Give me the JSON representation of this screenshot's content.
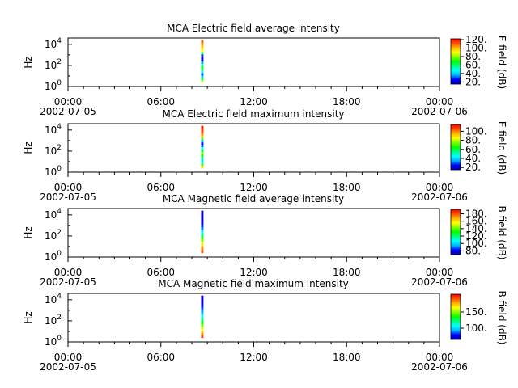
{
  "figure": {
    "colorscale": [
      "#0000b4",
      "#0000ff",
      "#00b4ff",
      "#00ffff",
      "#00ff80",
      "#00ff00",
      "#80ff00",
      "#ffff00",
      "#ffb400",
      "#ff5000",
      "#ff0000"
    ]
  },
  "chart_data": [
    {
      "type": "heatmap",
      "title": "MCA  Electric field average intensity",
      "ylabel": "Hz",
      "ylim_log10": [
        0,
        4.6
      ],
      "y_ticks": [
        {
          "exp": 0,
          "label": "10",
          "sup": "0"
        },
        {
          "exp": 2,
          "label": "10",
          "sup": "2"
        },
        {
          "exp": 4,
          "label": "10",
          "sup": "4"
        }
      ],
      "x_range_hours": [
        0,
        24
      ],
      "x_ticks": [
        {
          "hour": 0,
          "label": "00:00"
        },
        {
          "hour": 6,
          "label": "06:00"
        },
        {
          "hour": 12,
          "label": "12:00"
        },
        {
          "hour": 18,
          "label": "18:00"
        },
        {
          "hour": 24,
          "label": "00:00"
        }
      ],
      "x_dates": [
        {
          "hour": 0,
          "label": "2002-07-05"
        },
        {
          "hour": 24,
          "label": "2002-07-06"
        }
      ],
      "colorbar": {
        "label": "E field (dB)",
        "range": [
          15,
          122
        ],
        "ticks": [
          20,
          40,
          60,
          80,
          100,
          120
        ],
        "tick_labels": [
          "20.",
          "40.",
          "60.",
          "80.",
          "100.",
          "120."
        ]
      },
      "data": {
        "x_hours": [
          8.6,
          8.75
        ],
        "freq_log10": [
          0.4,
          4.4
        ],
        "levels": [
          85,
          60,
          40,
          30,
          45,
          55,
          70,
          50,
          35,
          20,
          15,
          28,
          60,
          90,
          95,
          100,
          105,
          110
        ]
      }
    },
    {
      "type": "heatmap",
      "title": "MCA  Electric field maximum intensity",
      "ylabel": "Hz",
      "ylim_log10": [
        0,
        4.6
      ],
      "y_ticks": [
        {
          "exp": 0,
          "label": "10",
          "sup": "0"
        },
        {
          "exp": 2,
          "label": "10",
          "sup": "2"
        },
        {
          "exp": 4,
          "label": "10",
          "sup": "4"
        }
      ],
      "x_range_hours": [
        0,
        24
      ],
      "x_ticks": [
        {
          "hour": 0,
          "label": "00:00"
        },
        {
          "hour": 6,
          "label": "06:00"
        },
        {
          "hour": 12,
          "label": "12:00"
        },
        {
          "hour": 18,
          "label": "18:00"
        },
        {
          "hour": 24,
          "label": "00:00"
        }
      ],
      "x_dates": [
        {
          "hour": 0,
          "label": "2002-07-05"
        },
        {
          "hour": 24,
          "label": "2002-07-06"
        }
      ],
      "colorbar": {
        "label": "E field (dB)",
        "range": [
          15,
          115
        ],
        "ticks": [
          20,
          40,
          60,
          80,
          100
        ],
        "tick_labels": [
          "20.",
          "40.",
          "60.",
          "80.",
          "100."
        ]
      },
      "data": {
        "x_hours": [
          8.6,
          8.75
        ],
        "freq_log10": [
          0.4,
          4.4
        ],
        "levels": [
          90,
          70,
          50,
          40,
          55,
          65,
          75,
          60,
          45,
          30,
          25,
          35,
          70,
          95,
          100,
          105,
          108,
          112
        ]
      }
    },
    {
      "type": "heatmap",
      "title": "MCA  Magnetic field average intensity",
      "ylabel": "Hz",
      "ylim_log10": [
        0,
        4.6
      ],
      "y_ticks": [
        {
          "exp": 0,
          "label": "10",
          "sup": "0"
        },
        {
          "exp": 2,
          "label": "10",
          "sup": "2"
        },
        {
          "exp": 4,
          "label": "10",
          "sup": "4"
        }
      ],
      "x_range_hours": [
        0,
        24
      ],
      "x_ticks": [
        {
          "hour": 0,
          "label": "00:00"
        },
        {
          "hour": 6,
          "label": "06:00"
        },
        {
          "hour": 12,
          "label": "12:00"
        },
        {
          "hour": 18,
          "label": "18:00"
        },
        {
          "hour": 24,
          "label": "00:00"
        }
      ],
      "x_dates": [
        {
          "hour": 0,
          "label": "2002-07-05"
        },
        {
          "hour": 24,
          "label": "2002-07-06"
        }
      ],
      "colorbar": {
        "label": "B field (dB)",
        "range": [
          70,
          192
        ],
        "ticks": [
          80,
          100,
          120,
          140,
          160,
          180
        ],
        "tick_labels": [
          "80.",
          "100.",
          "120.",
          "140.",
          "160.",
          "180."
        ]
      },
      "data": {
        "x_hours": [
          8.6,
          8.75
        ],
        "freq_log10": [
          0.4,
          4.4
        ],
        "levels": [
          180,
          175,
          170,
          160,
          150,
          140,
          135,
          120,
          110,
          100,
          90,
          85,
          80,
          78,
          75,
          75,
          74,
          72
        ]
      }
    },
    {
      "type": "heatmap",
      "title": "MCA  Magnetic field maximum intensity",
      "ylabel": "Hz",
      "ylim_log10": [
        0,
        4.6
      ],
      "y_ticks": [
        {
          "exp": 0,
          "label": "10",
          "sup": "0"
        },
        {
          "exp": 2,
          "label": "10",
          "sup": "2"
        },
        {
          "exp": 4,
          "label": "10",
          "sup": "4"
        }
      ],
      "x_range_hours": [
        0,
        24
      ],
      "x_ticks": [
        {
          "hour": 0,
          "label": "00:00"
        },
        {
          "hour": 6,
          "label": "06:00"
        },
        {
          "hour": 12,
          "label": "12:00"
        },
        {
          "hour": 18,
          "label": "18:00"
        },
        {
          "hour": 24,
          "label": "00:00"
        }
      ],
      "x_dates": [
        {
          "hour": 0,
          "label": "2002-07-05"
        },
        {
          "hour": 24,
          "label": "2002-07-06"
        }
      ],
      "colorbar": {
        "label": "B field (dB)",
        "range": [
          65,
          205
        ],
        "ticks": [
          100,
          150
        ],
        "tick_labels": [
          "100.",
          "150."
        ]
      },
      "data": {
        "x_hours": [
          8.6,
          8.75
        ],
        "freq_log10": [
          0.4,
          4.4
        ],
        "levels": [
          195,
          185,
          175,
          165,
          155,
          145,
          135,
          125,
          115,
          105,
          95,
          90,
          85,
          80,
          78,
          75,
          72,
          70
        ]
      }
    }
  ]
}
